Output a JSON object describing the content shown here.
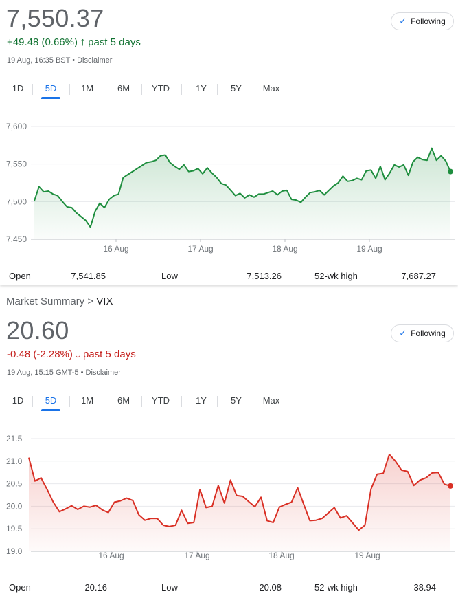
{
  "ftse": {
    "price": "7,550.37",
    "change": "+49.48 (0.66%)",
    "change_arrow": "🡑",
    "change_period": "past 5 days",
    "timestamp": "19 Aug, 16:35 BST • Disclaimer",
    "follow_label": "Following",
    "tabs": [
      "1D",
      "5D",
      "1M",
      "6M",
      "YTD",
      "1Y",
      "5Y",
      "Max"
    ],
    "active_tab": "5D",
    "stats": {
      "open_label": "Open",
      "open_value": "7,541.85",
      "low_label": "Low",
      "low_value": "7,513.26",
      "high_label": "52-wk high",
      "high_value": "7,687.27"
    }
  },
  "breadcrumb": {
    "parent": "Market Summary",
    "separator": ">",
    "current": "VIX"
  },
  "vix": {
    "price": "20.60",
    "change": "-0.48 (-2.28%)",
    "change_arrow": "🡓",
    "change_period": "past 5 days",
    "timestamp": "19 Aug, 15:15 GMT-5 • Disclaimer",
    "follow_label": "Following",
    "tabs": [
      "1D",
      "5D",
      "1M",
      "6M",
      "YTD",
      "1Y",
      "5Y",
      "Max"
    ],
    "active_tab": "5D",
    "stats": {
      "open_label": "Open",
      "open_value": "20.16",
      "low_label": "Low",
      "low_value": "20.08",
      "high_label": "52-wk high",
      "high_value": "38.94"
    }
  },
  "colors": {
    "up": "#1e8e3e",
    "down": "#d93025",
    "accent": "#1a73e8"
  },
  "chart_data": [
    {
      "type": "area",
      "title": "",
      "xlabel": "",
      "ylabel": "",
      "x_tick_labels": [
        "16 Aug",
        "17 Aug",
        "18 Aug",
        "19 Aug"
      ],
      "y_tick_labels": [
        "7,600",
        "7,550",
        "7,500",
        "7,450"
      ],
      "y_ticks": [
        7600,
        7550,
        7500,
        7450
      ],
      "ylim": [
        7450,
        7600
      ],
      "grid": true,
      "color": "#1e8e3e",
      "series": [
        {
          "values": [
            7501,
            7520,
            7513,
            7514,
            7510,
            7508,
            7500,
            7493,
            7492,
            7485,
            7480,
            7475,
            7466,
            7487,
            7498,
            7492,
            7503,
            7508,
            7510,
            7532,
            7536,
            7540,
            7544,
            7548,
            7552,
            7553,
            7555,
            7561,
            7562,
            7552,
            7547,
            7543,
            7549,
            7540,
            7541,
            7544,
            7537,
            7545,
            7538,
            7532,
            7524,
            7522,
            7515,
            7508,
            7511,
            7505,
            7509,
            7506,
            7510,
            7510,
            7512,
            7514,
            7509,
            7514,
            7515,
            7503,
            7502,
            7499,
            7506,
            7512,
            7513,
            7515,
            7509,
            7515,
            7521,
            7525,
            7534,
            7527,
            7528,
            7531,
            7529,
            7541,
            7542,
            7531,
            7547,
            7529,
            7538,
            7549,
            7546,
            7549,
            7535,
            7553,
            7559,
            7556,
            7555,
            7571,
            7555,
            7561,
            7554,
            7540
          ]
        }
      ]
    },
    {
      "type": "area",
      "title": "",
      "xlabel": "",
      "ylabel": "",
      "x_tick_labels": [
        "16 Aug",
        "17 Aug",
        "18 Aug",
        "19 Aug"
      ],
      "y_tick_labels": [
        "21.5",
        "21.0",
        "20.5",
        "20.0",
        "19.5",
        "19.0"
      ],
      "y_ticks": [
        21.5,
        21.0,
        20.5,
        20.0,
        19.5,
        19.0
      ],
      "ylim": [
        19.0,
        21.5
      ],
      "grid": true,
      "color": "#d93025",
      "series": [
        {
          "values": [
            21.08,
            20.56,
            20.63,
            20.37,
            20.09,
            19.88,
            19.94,
            20.01,
            19.93,
            20.0,
            19.98,
            20.02,
            19.92,
            19.86,
            20.09,
            20.12,
            20.18,
            20.13,
            19.81,
            19.69,
            19.73,
            19.73,
            19.58,
            19.55,
            19.58,
            19.91,
            19.62,
            19.64,
            20.37,
            19.97,
            20.0,
            20.46,
            20.07,
            20.58,
            20.24,
            20.22,
            20.1,
            19.99,
            20.2,
            19.68,
            19.64,
            19.98,
            20.04,
            20.09,
            20.41,
            20.04,
            19.68,
            19.69,
            19.73,
            19.85,
            19.97,
            19.74,
            19.79,
            19.63,
            19.47,
            19.58,
            20.38,
            20.71,
            20.73,
            21.15,
            21.0,
            20.8,
            20.77,
            20.46,
            20.58,
            20.63,
            20.74,
            20.75,
            20.49,
            20.45
          ]
        }
      ]
    }
  ]
}
